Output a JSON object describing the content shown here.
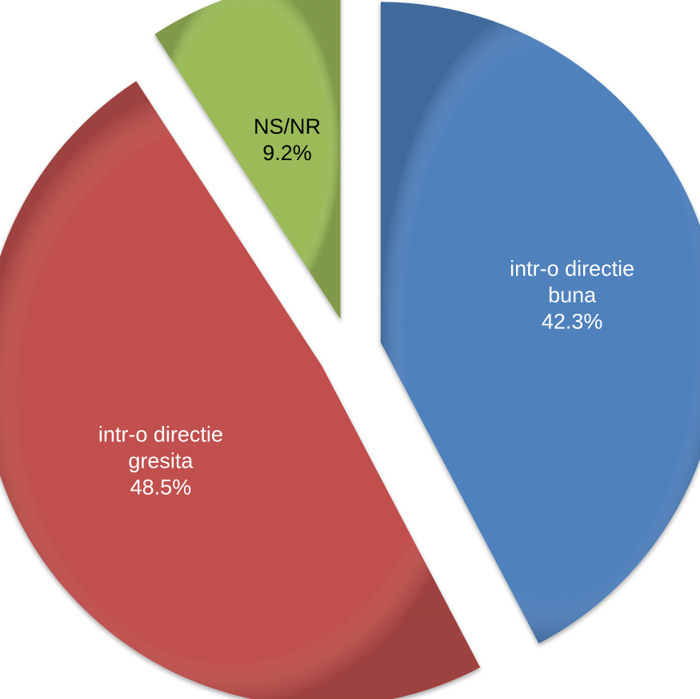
{
  "chart_data": {
    "type": "pie",
    "title": "",
    "legend": "none",
    "exploded": true,
    "slices": [
      {
        "name": "intr-o directie buna",
        "label_lines": [
          "intr-o directie",
          "buna"
        ],
        "value": 42.3,
        "value_label": "42.3%",
        "color": "#4F81BD",
        "label_color": "#ffffff"
      },
      {
        "name": "intr-o directie gresita",
        "label_lines": [
          "intr-o directie",
          "gresita"
        ],
        "value": 48.5,
        "value_label": "48.5%",
        "color": "#C0504D",
        "label_color": "#ffffff"
      },
      {
        "name": "NS/NR",
        "label_lines": [
          "NS/NR"
        ],
        "value": 9.2,
        "value_label": "9.2%",
        "color": "#9BBB59",
        "label_color": "#000000"
      }
    ]
  }
}
